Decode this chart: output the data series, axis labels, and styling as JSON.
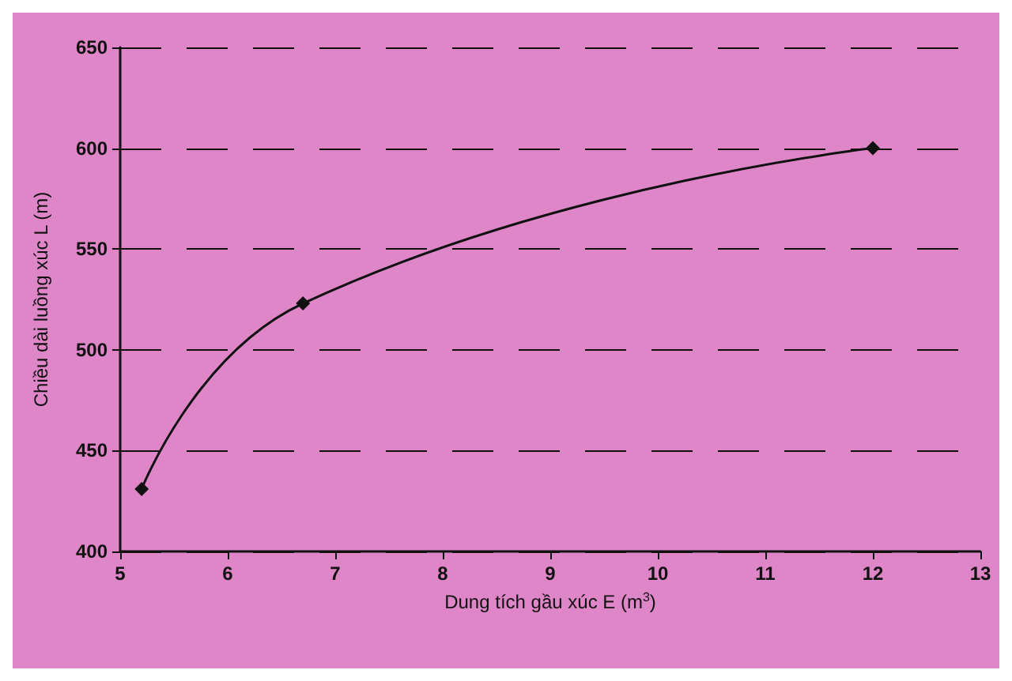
{
  "chart_data": {
    "type": "line",
    "xlabel": "Dung tích gầu xúc E (m$^{3}$)",
    "ylabel": "Chiều dài luồng xúc L (m)",
    "x": [
      5.2,
      6.7,
      12
    ],
    "series": [
      {
        "color": "#111111",
        "values": [
          431,
          523,
          600
        ]
      }
    ],
    "xlim": [
      5,
      13
    ],
    "xticks": [
      5,
      6,
      7,
      8,
      9,
      10,
      11,
      12,
      13
    ],
    "ylim": [
      400,
      650
    ],
    "yticks": [
      400,
      450,
      500,
      550,
      600,
      650
    ],
    "grid": "y",
    "marker": "diamond",
    "line_style": "solid"
  }
}
